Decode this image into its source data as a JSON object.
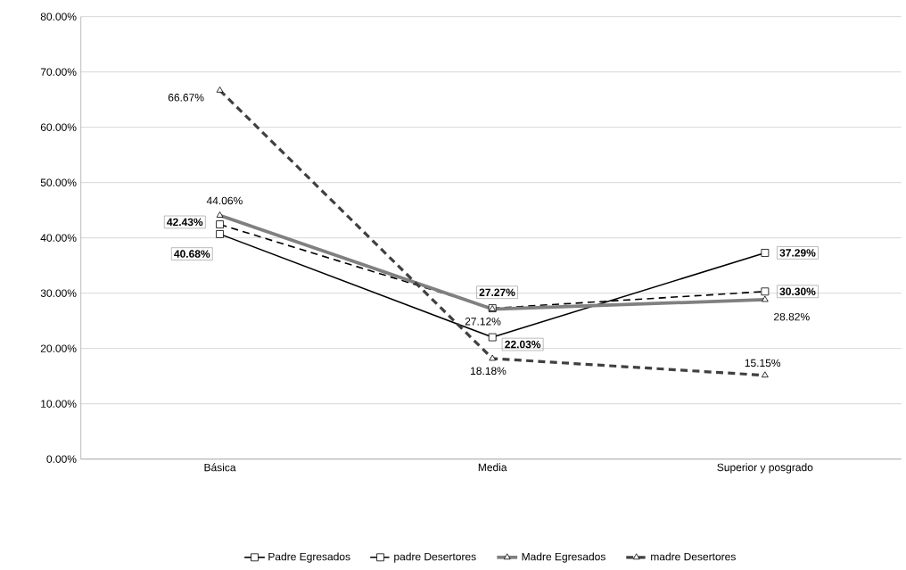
{
  "chart_data": {
    "type": "line",
    "categories": [
      "Básica",
      "Media",
      "Superior y posgrado"
    ],
    "ylim": [
      0,
      80
    ],
    "yticks": [
      {
        "value": 0,
        "label": "0.00%"
      },
      {
        "value": 10,
        "label": "10.00%"
      },
      {
        "value": 20,
        "label": "20.00%"
      },
      {
        "value": 30,
        "label": "30.00%"
      },
      {
        "value": 40,
        "label": "40.00%"
      },
      {
        "value": 50,
        "label": "50.00%"
      },
      {
        "value": 60,
        "label": "60.00%"
      },
      {
        "value": 70,
        "label": "70.00%"
      },
      {
        "value": 80,
        "label": "80.00%"
      }
    ],
    "grid": "y",
    "legend": "bottom",
    "series": [
      {
        "name": "Padre Egresados",
        "color": "#000000",
        "values": [
          40.68,
          22.03,
          37.29
        ],
        "value_labels": [
          "40.68%",
          "22.03%",
          "37.29%"
        ],
        "marker": "square",
        "line_style": "solid"
      },
      {
        "name": "padre Desertores",
        "color": "#000000",
        "values": [
          42.43,
          27.27,
          30.3
        ],
        "value_labels": [
          "42.43%",
          "27.27%",
          "30.30%"
        ],
        "marker": "square",
        "line_style": "dashed"
      },
      {
        "name": "Madre Egresados",
        "color": "#808080",
        "values": [
          44.06,
          27.12,
          28.82
        ],
        "value_labels": [
          "44.06%",
          "27.12%",
          "28.82%"
        ],
        "marker": "triangle",
        "line_style": "solid"
      },
      {
        "name": "madre Desertores",
        "color": "#404040",
        "values": [
          66.67,
          18.18,
          15.15
        ],
        "value_labels": [
          "66.67%",
          "18.18%",
          "15.15%"
        ],
        "marker": "triangle",
        "line_style": "dashed"
      }
    ]
  }
}
